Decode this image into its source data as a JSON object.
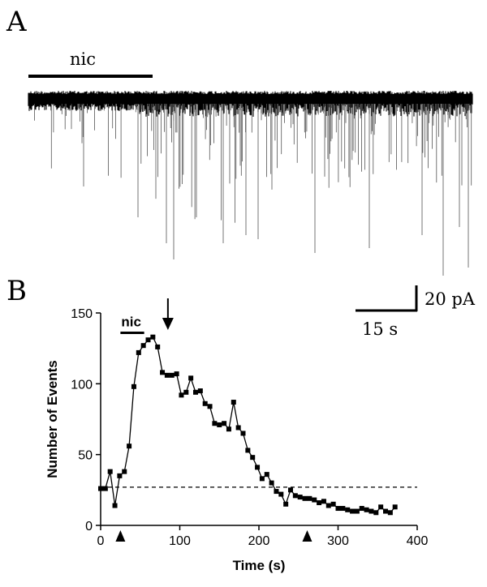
{
  "panel_a": {
    "label": "A",
    "bar_label": "nic"
  },
  "scale_bar": {
    "vertical_label": "20 pA",
    "horizontal_label": "15 s"
  },
  "panel_b": {
    "label": "B",
    "nic_label": "nic"
  },
  "chart_data": {
    "type": "line",
    "xlabel": "Time (s)",
    "ylabel": "Number of Events",
    "xlim": [
      0,
      400
    ],
    "ylim": [
      0,
      150
    ],
    "xticks": [
      "0",
      "100",
      "200",
      "300",
      "400"
    ],
    "yticks": [
      "0",
      "50",
      "100",
      "150"
    ],
    "baseline": 27,
    "nic_bar_range": [
      25,
      55
    ],
    "peak_arrow_x": 85,
    "arrowheads_x": [
      25,
      261
    ],
    "series": [
      {
        "x": [
          0,
          6,
          12,
          18,
          24,
          30,
          36,
          42,
          48,
          54,
          60,
          66,
          72,
          78,
          84,
          90,
          96,
          102,
          108,
          114,
          120,
          126,
          132,
          138,
          144,
          150,
          156,
          162,
          168,
          174,
          180,
          186,
          192,
          198,
          204,
          210,
          216,
          222,
          228,
          234,
          240,
          246,
          252,
          258,
          264,
          270,
          276,
          282,
          288,
          294,
          300,
          306,
          312,
          318,
          324,
          330,
          336,
          342,
          348,
          354,
          360,
          366,
          372
        ],
        "values": [
          26,
          26,
          38,
          14,
          35,
          38,
          56,
          98,
          122,
          127,
          131,
          133,
          126,
          108,
          106,
          106,
          107,
          92,
          94,
          104,
          94,
          95,
          86,
          84,
          72,
          71,
          72,
          68,
          87,
          69,
          65,
          53,
          48,
          41,
          33,
          36,
          30,
          24,
          22,
          15,
          25,
          21,
          20,
          19,
          19,
          18,
          16,
          17,
          14,
          15,
          12,
          12,
          11,
          10,
          10,
          12,
          11,
          10,
          9,
          13,
          10,
          9,
          13
        ]
      }
    ]
  }
}
